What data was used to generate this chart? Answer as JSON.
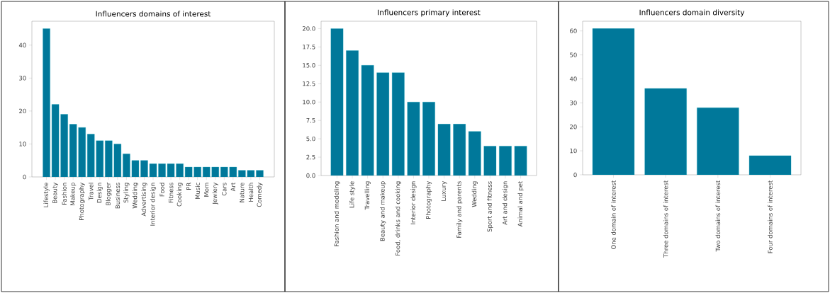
{
  "chart_data": [
    {
      "type": "bar",
      "title": "Influencers domains of interest",
      "color": "#00789a",
      "categories": [
        "Lifestyle",
        "Beauty",
        "Fashion",
        "Makeup",
        "Photography",
        "Travel",
        "Design",
        "Blogger",
        "Business",
        "Styling",
        "Wedding",
        "Advertising",
        "Interior design",
        "Food",
        "Fitness",
        "Cooking",
        "PR",
        "Music",
        "Mom",
        "Jewlery",
        "Cars",
        "Art",
        "Nature",
        "Health",
        "Comedy"
      ],
      "values": [
        45,
        22,
        19,
        16,
        15,
        13,
        11,
        11,
        10,
        7,
        5,
        5,
        4,
        4,
        4,
        4,
        3,
        3,
        3,
        3,
        3,
        3,
        2,
        2,
        2
      ],
      "ylim": [
        0,
        47.25
      ],
      "yticks": [
        0,
        10,
        20,
        30,
        40
      ]
    },
    {
      "type": "bar",
      "title": "Influencers primary interest",
      "color": "#00789a",
      "categories": [
        "Fashion and modeling",
        "Life style",
        "Travelling",
        "Beauty and makeup",
        "Food, drinks and cooking",
        "Interior design",
        "Photography",
        "Luxury",
        "Family and parents",
        "Wedding",
        "Sport and fitness",
        "Art and design",
        "Animal and pet"
      ],
      "values": [
        20,
        17,
        15,
        14,
        14,
        10,
        10,
        7,
        7,
        6,
        4,
        4,
        4
      ],
      "ylim": [
        0,
        21
      ],
      "yticks": [
        {
          "value": 0,
          "label": "0.0"
        },
        {
          "value": 2.5,
          "label": "2.5"
        },
        {
          "value": 5,
          "label": "5.0"
        },
        {
          "value": 7.5,
          "label": "7.5"
        },
        {
          "value": 10,
          "label": "10.0"
        },
        {
          "value": 12.5,
          "label": "12.5"
        },
        {
          "value": 15,
          "label": "15.0"
        },
        {
          "value": 17.5,
          "label": "17.5"
        },
        {
          "value": 20,
          "label": "20.0"
        }
      ]
    },
    {
      "type": "bar",
      "title": "Influencers domain diversity",
      "color": "#00789a",
      "categories": [
        "One domain of interest",
        "Three domains of interest",
        "Two domains of interest",
        "Four domains of interest"
      ],
      "values": [
        61,
        36,
        28,
        8
      ],
      "ylim": [
        0,
        64.05
      ],
      "yticks": [
        0,
        10,
        20,
        30,
        40,
        50,
        60
      ]
    }
  ]
}
